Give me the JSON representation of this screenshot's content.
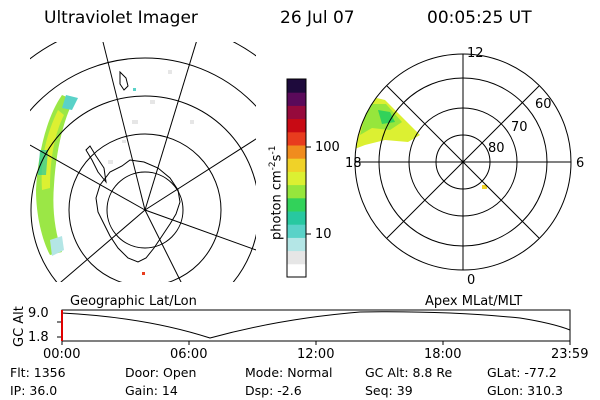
{
  "header": {
    "instrument": "Ultraviolet Imager",
    "date": "26 Jul 07",
    "time": "00:05:25 UT"
  },
  "colorbar": {
    "label": "photon cm",
    "label_exp1": "-2",
    "label_mid": "s",
    "label_exp2": "-1",
    "tick_100": "100",
    "tick_10": "10",
    "colors": [
      "#ffffff",
      "#e6e6e6",
      "#b4e6e6",
      "#5ad2c8",
      "#28c8a0",
      "#32d25a",
      "#96e63c",
      "#dcf032",
      "#f0d228",
      "#f08c1e",
      "#e83c1e",
      "#c80a14",
      "#960a3c",
      "#5a0a5a",
      "#1e0a3c"
    ]
  },
  "geo_map": {
    "label": "Geographic Lat/Lon"
  },
  "mlt_plot": {
    "label": "Apex MLat/MLT",
    "mlt_12": "12",
    "mlt_18": "18",
    "mlt_6": "6",
    "mlt_0": "0",
    "mlat_60": "60",
    "mlat_70": "70",
    "mlat_80": "80"
  },
  "altitude_plot": {
    "ylabel": "GC Alt",
    "ytick_high": "9.0",
    "ytick_low": "1.8",
    "xticks": [
      "00:00",
      "06:00",
      "12:00",
      "18:00",
      "23:59"
    ]
  },
  "info": {
    "flt": "Flt: 1356",
    "ip": "IP: 36.0",
    "door": "Door: Open",
    "gain": "Gain: 14",
    "mode": "Mode: Normal",
    "dsp": "Dsp:     -2.6",
    "gc_alt": "GC Alt: 8.8 Re",
    "seq": "Seq: 39",
    "glat": "GLat: -77.2",
    "glon": "GLon: 310.3"
  }
}
